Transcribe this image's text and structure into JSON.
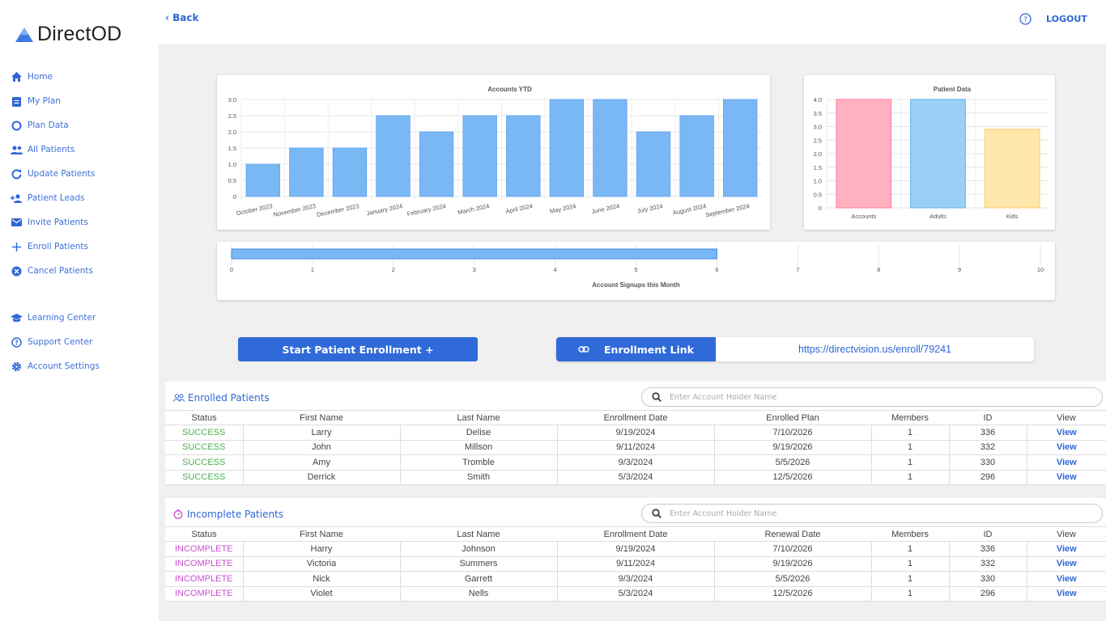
{
  "app": {
    "brand": "DirectOD",
    "back_label": "Back",
    "logout_label": "LOGOUT"
  },
  "sidebar": {
    "items": [
      {
        "label": "Home",
        "icon": "home-icon"
      },
      {
        "label": "My Plan",
        "icon": "clipboard-icon"
      },
      {
        "label": "Plan Data",
        "icon": "ring-icon"
      },
      {
        "label": "All Patients",
        "icon": "people-icon"
      },
      {
        "label": "Update Patients",
        "icon": "refresh-icon"
      },
      {
        "label": "Patient Leads",
        "icon": "person-add-icon"
      },
      {
        "label": "Invite Patients",
        "icon": "mail-icon"
      },
      {
        "label": "Enroll Patients",
        "icon": "plus-icon"
      },
      {
        "label": "Cancel Patients",
        "icon": "cancel-circle-icon"
      }
    ],
    "secondary": [
      {
        "label": "Learning Center",
        "icon": "graduation-cap-icon"
      },
      {
        "label": "Support Center",
        "icon": "help-circle-icon"
      },
      {
        "label": "Account Settings",
        "icon": "gear-icon"
      }
    ]
  },
  "colors": {
    "accent": "#2f6ad8",
    "bar_blue": "#7ab8f5",
    "bar_pink": "#ffb1c1",
    "bar_light_blue": "#9ad0f5",
    "bar_yellow": "#ffe6aa",
    "success": "#4caf50",
    "incomplete": "#c94fcf"
  },
  "chart_data": [
    {
      "type": "bar",
      "title": "Accounts YTD",
      "categories": [
        "October 2023",
        "November 2023",
        "December 2023",
        "January 2024",
        "February 2024",
        "March 2024",
        "April 2024",
        "May 2024",
        "June 2024",
        "July 2024",
        "August 2024",
        "September 2024"
      ],
      "values": [
        1,
        1.5,
        1.5,
        2.5,
        2,
        2.5,
        2.5,
        3,
        3,
        2,
        2.5,
        3
      ],
      "ylim": [
        0,
        3
      ],
      "yticks": [
        "0",
        "0.5",
        "1.0",
        "1.5",
        "2.0",
        "2.5",
        "3.0"
      ],
      "grid": true
    },
    {
      "type": "bar",
      "title": "Patient Data",
      "categories": [
        "Accounts",
        "Adults",
        "Kids"
      ],
      "values": [
        4,
        4,
        2.9
      ],
      "ylim": [
        0,
        4
      ],
      "yticks": [
        "0",
        "0.5",
        "1.0",
        "1.5",
        "2.0",
        "2.5",
        "3.0",
        "3.5",
        "4.0"
      ],
      "grid": true
    },
    {
      "type": "bar",
      "orientation": "horizontal",
      "xlabel": "Account Signups this Month",
      "values": [
        6
      ],
      "xlim": [
        0,
        10
      ],
      "xticks": [
        "0",
        "1",
        "2",
        "3",
        "4",
        "5",
        "6",
        "7",
        "8",
        "9",
        "10"
      ],
      "grid": true
    }
  ],
  "actions": {
    "start_enrollment": "Start Patient Enrollment +",
    "enrollment_link_label": "Enrollment Link",
    "enrollment_link_url": "https://directvision.us/enroll/79241"
  },
  "enrolled": {
    "title": "Enrolled Patients",
    "search_placeholder": "Enter Account Holder Name",
    "columns": [
      "Status",
      "First Name",
      "Last Name",
      "Enrollment Date",
      "Enrolled Plan",
      "Members",
      "ID",
      "View"
    ],
    "rows": [
      [
        "SUCCESS",
        "Larry",
        "Delise",
        "9/19/2024",
        "7/10/2026",
        "1",
        "336",
        "View"
      ],
      [
        "SUCCESS",
        "John",
        "Millson",
        "9/11/2024",
        "9/19/2026",
        "1",
        "332",
        "View"
      ],
      [
        "SUCCESS",
        "Amy",
        "Tromble",
        "9/3/2024",
        "5/5/2026",
        "1",
        "330",
        "View"
      ],
      [
        "SUCCESS",
        "Derrick",
        "Smith",
        "5/3/2024",
        "12/5/2026",
        "1",
        "296",
        "View"
      ]
    ]
  },
  "incomplete": {
    "title": "Incomplete Patients",
    "search_placeholder": "Enter Account Holder Name",
    "columns": [
      "Status",
      "First Name",
      "Last Name",
      "Enrollment Date",
      "Renewal Date",
      "Members",
      "ID",
      "View"
    ],
    "rows": [
      [
        "INCOMPLETE",
        "Harry",
        "Johnson",
        "9/19/2024",
        "7/10/2026",
        "1",
        "336",
        "View"
      ],
      [
        "INCOMPLETE",
        "Victoria",
        "Summers",
        "9/11/2024",
        "9/19/2026",
        "1",
        "332",
        "View"
      ],
      [
        "INCOMPLETE",
        "Nick",
        "Garrett",
        "9/3/2024",
        "5/5/2026",
        "1",
        "330",
        "View"
      ],
      [
        "INCOMPLETE",
        "Violet",
        "Nells",
        "5/3/2024",
        "12/5/2026",
        "1",
        "296",
        "View"
      ]
    ]
  }
}
